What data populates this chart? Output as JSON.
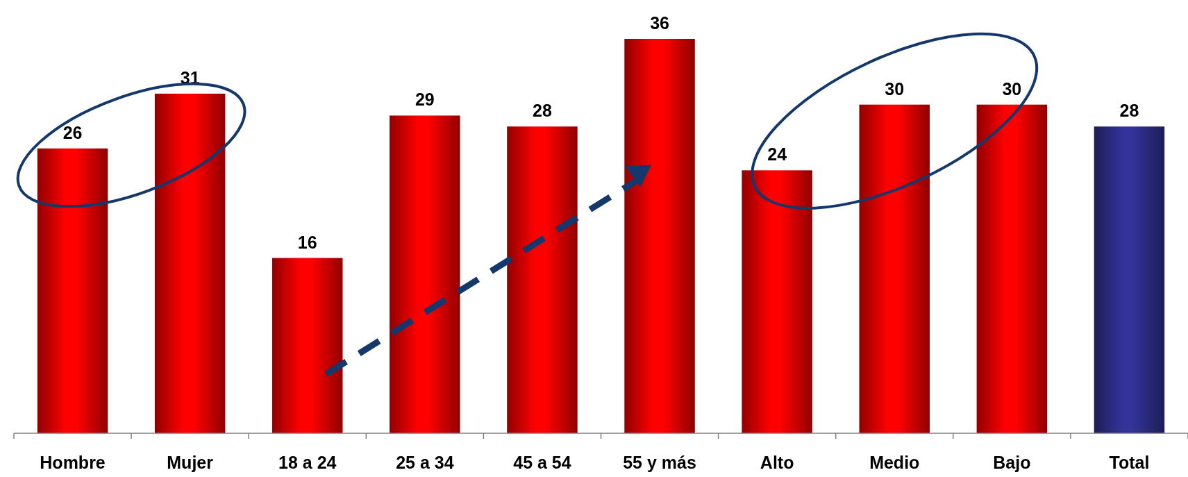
{
  "chart_data": {
    "type": "bar",
    "categories": [
      "Hombre",
      "Mujer",
      "18 a 24",
      "25 a 34",
      "45 a 54",
      "55 y más",
      "Alto",
      "Medio",
      "Bajo",
      "Total"
    ],
    "values": [
      26,
      31,
      16,
      29,
      28,
      36,
      24,
      30,
      30,
      28
    ],
    "colors": [
      "#ff0000",
      "#ff0000",
      "#ff0000",
      "#ff0000",
      "#ff0000",
      "#ff0000",
      "#ff0000",
      "#ff0000",
      "#ff0000",
      "#333399"
    ],
    "tick_labels": "x",
    "data_labels": true
  }
}
